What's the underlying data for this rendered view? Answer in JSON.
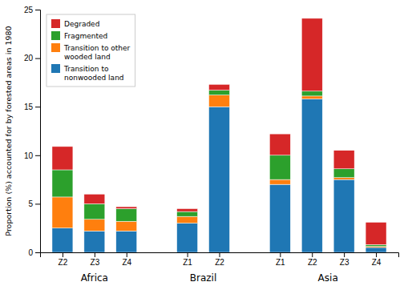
{
  "chart_data": {
    "type": "bar",
    "stacked": true,
    "ylabel": "Proportion (%) accounted for by forested areas in 1980",
    "categories": [
      "Z2",
      "Z3",
      "Z4",
      "Z1",
      "Z2",
      "Z1",
      "Z2",
      "Z3",
      "Z4"
    ],
    "groups": [
      "Africa",
      "Africa",
      "Africa",
      "Brazil",
      "Brazil",
      "Asia",
      "Asia",
      "Asia",
      "Asia"
    ],
    "series": [
      {
        "name": "Transition to\nnonwooded land",
        "values": [
          2.5,
          2.2,
          2.2,
          3.0,
          15.0,
          7.0,
          15.8,
          7.5,
          0.5
        ]
      },
      {
        "name": "Transition to other\nwooded land",
        "values": [
          3.2,
          1.2,
          1.0,
          0.7,
          1.2,
          0.5,
          0.3,
          0.2,
          0.1
        ]
      },
      {
        "name": "Fragmented",
        "values": [
          2.8,
          1.6,
          1.3,
          0.5,
          0.5,
          2.5,
          0.5,
          0.9,
          0.2
        ]
      },
      {
        "name": "Degraded",
        "values": [
          2.4,
          1.0,
          0.2,
          0.3,
          0.6,
          2.2,
          7.5,
          1.9,
          2.3
        ]
      }
    ],
    "ylim": [
      0,
      25
    ],
    "yticks": [
      0,
      5,
      10,
      15,
      20,
      25
    ],
    "legend": "upper left"
  }
}
